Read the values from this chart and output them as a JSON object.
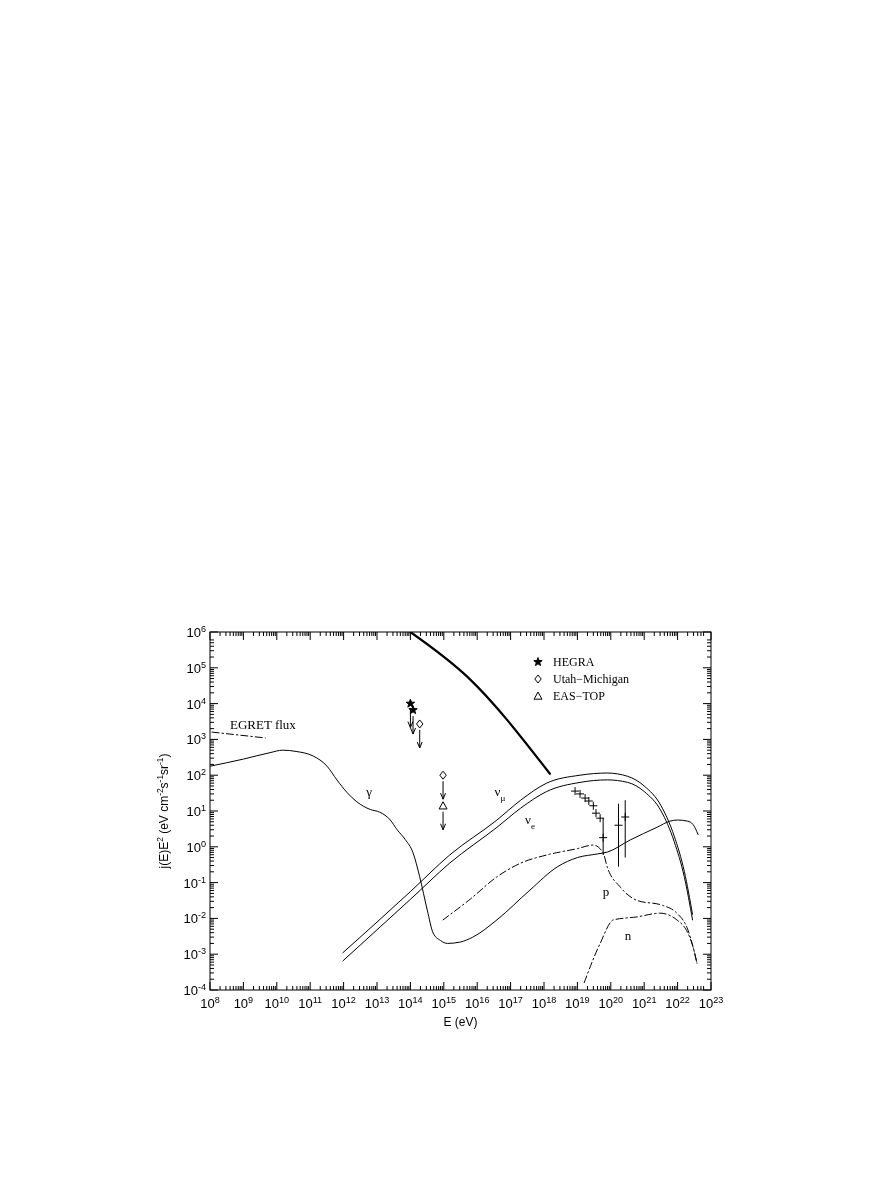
{
  "chart_data": {
    "type": "line",
    "xlabel": "E (eV)",
    "ylabel": "j(E)E$^{2}$ (eV cm$^{-2}$s$^{-1}$sr$^{-1}$)",
    "log": "xy",
    "grid": false,
    "legend": "top right",
    "xlim": [
      100000000.0,
      1e+23
    ],
    "xticks": [
      {
        "value": 100000000.0,
        "label": "10$^{8}$"
      },
      {
        "value": 1000000000.0,
        "label": "10$^{9}$"
      },
      {
        "value": 10000000000.0,
        "label": "10$^{10}$"
      },
      {
        "value": 100000000000.0,
        "label": "10$^{11}$"
      },
      {
        "value": 1000000000000.0,
        "label": "10$^{12}$"
      },
      {
        "value": 10000000000000.0,
        "label": "10$^{13}$"
      },
      {
        "value": 100000000000000.0,
        "label": "10$^{14}$"
      },
      {
        "value": 1000000000000000.0,
        "label": "10$^{15}$"
      },
      {
        "value": 1e+16,
        "label": "10$^{16}$"
      },
      {
        "value": 1e+17,
        "label": "10$^{17}$"
      },
      {
        "value": 1e+18,
        "label": "10$^{18}$"
      },
      {
        "value": 1e+19,
        "label": "10$^{19}$"
      },
      {
        "value": 1e+20,
        "label": "10$^{20}$"
      },
      {
        "value": 1e+21,
        "label": "10$^{21}$"
      },
      {
        "value": 1e+22,
        "label": "10$^{22}$"
      },
      {
        "value": 1e+23,
        "label": "10$^{23}$"
      }
    ],
    "ylim": [
      0.0001,
      1000000.0
    ],
    "yticks": [
      {
        "value": 0.0001,
        "label": "10$^{-4}$"
      },
      {
        "value": 0.001,
        "label": "10$^{-3}$"
      },
      {
        "value": 0.01,
        "label": "10$^{-2}$"
      },
      {
        "value": 0.1,
        "label": "10$^{-1}$"
      },
      {
        "value": 1,
        "label": "10$^{0}$"
      },
      {
        "value": 10,
        "label": "10$^{1}$"
      },
      {
        "value": 100,
        "label": "10$^{2}$"
      },
      {
        "value": 1000,
        "label": "10$^{3}$"
      },
      {
        "value": 10000.0,
        "label": "10$^{4}$"
      },
      {
        "value": 100000.0,
        "label": "10$^{5}$"
      },
      {
        "value": 1000000.0,
        "label": "10$^{6}$"
      }
    ],
    "series": [
      {
        "color": "#000000",
        "line_style": "solid",
        "x": [
          100000000000000.0,
          5200000000000000.0,
          1.5e+18
        ],
        "values": [
          1000000.0,
          55000.0,
          110
        ]
      },
      {
        "name": "EGRET flux",
        "color": "#000000",
        "line_style": "dashed",
        "x": [
          115000000.0,
          4500000000.0
        ],
        "values": [
          1600,
          1100
        ]
      },
      {
        "name": "γ",
        "color": "#000000",
        "line_style": "solid",
        "x": [
          100000000.0,
          1000000000.0,
          6300000000.0,
          15000000000.0,
          40000000000.0,
          120000000000.0,
          320000000000.0,
          630000000000.0,
          1300000000000.0,
          2500000000000.0,
          6300000000000.0,
          12000000000000.0,
          25000000000000.0,
          40000000000000.0,
          70000000000000.0,
          120000000000000.0,
          190000000000000.0,
          320000000000000.0,
          480000000000000.0,
          800000000000000.0,
          1300000000000000.0,
          3200000000000000.0,
          7400000000000000.0,
          3.9e+16,
          3.8e+17,
          2.5e+18,
          1e+19,
          3.9e+19,
          7.8e+19,
          3.8e+20,
          2.4e+21,
          5.9e+21,
          1e+22,
          2e+22,
          2.9e+22,
          4.1e+22
        ],
        "values": [
          178,
          282,
          427,
          500,
          457,
          347,
          178,
          74,
          32,
          18,
          11,
          9.3,
          5.6,
          3,
          1.6,
          0.68,
          0.145,
          0.017,
          0.0039,
          0.0024,
          0.002,
          0.0022,
          0.003,
          0.0091,
          0.062,
          0.275,
          0.5,
          0.63,
          0.71,
          1.55,
          3.5,
          5.2,
          5.6,
          5.2,
          4.2,
          2.2
        ]
      },
      {
        "name": "ν$_{μ}$",
        "color": "#000000",
        "line_style": "solid",
        "x": [
          950000000000.0,
          10000000000000.0,
          100000000000000.0,
          1500000000000000.0,
          3.9e+16,
          2e+17,
          1.2e+18,
          1.2e+19,
          7.8e+19,
          3.2e+20,
          1e+21,
          3.2e+21,
          7.9e+21,
          1.6e+22,
          2.8e+22
        ],
        "values": [
          0.0011,
          0.0079,
          0.056,
          0.59,
          5.6,
          20,
          60,
          100,
          115,
          93,
          50,
          14,
          2,
          0.2,
          0.013
        ]
      },
      {
        "name": "ν$_{e}$",
        "color": "#000000",
        "line_style": "solid",
        "x": [
          950000000000.0,
          10000000000000.0,
          100000000000000.0,
          1500000000000000.0,
          3.9e+16,
          2e+17,
          1.2e+18,
          1.2e+19,
          7.8e+19,
          3.2e+20,
          1e+21,
          3.2e+21,
          7.9e+21,
          1.6e+22,
          2.8e+22
        ],
        "values": [
          0.00065,
          0.0048,
          0.034,
          0.35,
          3.5,
          12,
          35,
          63,
          74,
          63,
          35,
          10,
          1.4,
          0.14,
          0.0091
        ]
      },
      {
        "name": "p",
        "color": "#000000",
        "line_style": "dashed",
        "x": [
          950000000000000.0,
          6300000000000000.0,
          3.9e+16,
          2e+17,
          1.2e+18,
          1e+19,
          3e+19,
          5.9e+19,
          7.8e+19,
          1.9e+20,
          6e+20,
          3.6e+21,
          9.5e+21,
          2e+22,
          2.9e+22,
          3.8e+22
        ],
        "values": [
          0.0091,
          0.035,
          0.145,
          0.35,
          0.59,
          0.89,
          1.12,
          0.68,
          0.275,
          0.076,
          0.032,
          0.023,
          0.014,
          0.005,
          0.0016,
          0.00056
        ]
      },
      {
        "name": "n",
        "color": "#000000",
        "line_style": "dashed",
        "x": [
          1.6e+19,
          2.8e+19,
          4.8e+19,
          1.2e+20,
          6e+20,
          3e+21,
          9.5e+21,
          2e+22,
          2.9e+22,
          3.8e+22
        ],
        "values": [
          0.00016,
          0.00063,
          0.002,
          0.0091,
          0.011,
          0.014,
          0.0091,
          0.004,
          0.0016,
          0.00056
        ]
      },
      {
        "type": "scatter",
        "name": "HEGRA",
        "color": "#000000",
        "marker": "star",
        "x": [
          100000000000000.0,
          120000000000000.0
        ],
        "values": [
          10000.0,
          6600
        ]
      },
      {
        "type": "scatter",
        "name": "Utah−Michigan",
        "color": "#000000",
        "marker": "diamond",
        "x": [
          190000000000000.0,
          950000000000000.0
        ],
        "values": [
          2700,
          100
        ]
      },
      {
        "type": "scatter",
        "name": "EAS−TOP",
        "color": "#000000",
        "marker": "triangle",
        "x": [
          950000000000000.0
        ],
        "values": [
          14
        ]
      },
      {
        "type": "scatter",
        "color": "#000000",
        "marker": "cross",
        "x": [
          8.5e+18,
          1.2e+19,
          1.7e+19,
          2.2e+19,
          3e+19,
          3.6e+19,
          4.8e+19,
          5.9e+19,
          1.7e+20,
          2.7e+20
        ],
        "values": [
          36,
          30,
          23,
          19,
          14,
          8.7,
          6.3,
          1.8,
          4,
          6.8
        ],
        "errors": [
          null,
          null,
          null,
          null,
          null,
          null,
          null,
          [
            0.59,
            6.3
          ],
          [
            0.28,
            16
          ],
          [
            0.5,
            20
          ]
        ]
      }
    ]
  }
}
